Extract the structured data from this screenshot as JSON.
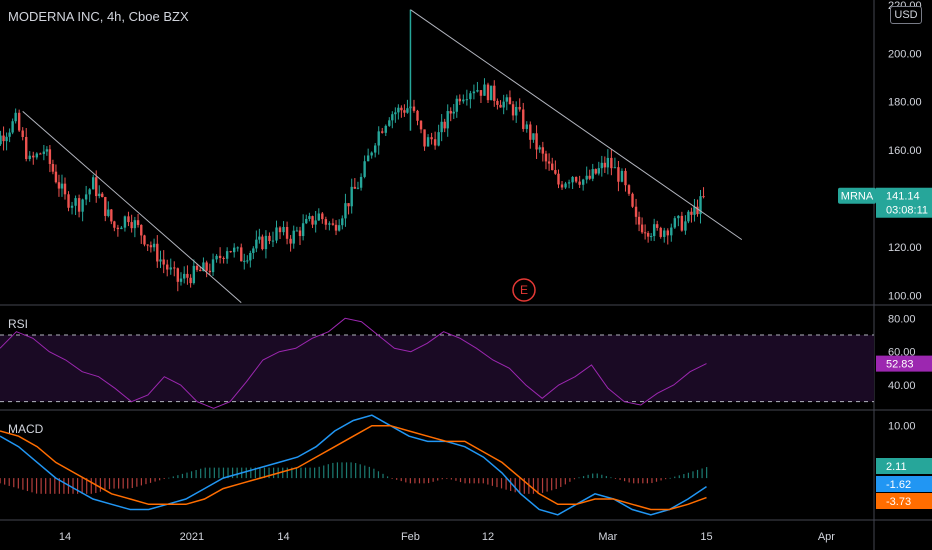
{
  "header": {
    "title": "MODERNA INC, 4h, Cboe BZX",
    "currency_button": "USD"
  },
  "colors": {
    "up": "#26a69a",
    "down": "#ef5350",
    "rsi": "#9c27b0",
    "macd": "#2196f3",
    "signal": "#ff6d00",
    "trendline": "#b2b5be",
    "earnings": "#e53935"
  },
  "chart_data": [
    {
      "type": "candlestick",
      "symbol": "MRNA",
      "title": "MODERNA INC, 4h, Cboe BZX",
      "x_ticks": [
        "14",
        "2021",
        "14",
        "Feb",
        "12",
        "Mar",
        "15",
        "Apr"
      ],
      "y_ticks": [
        "100.00",
        "120.00",
        "140.00",
        "160.00",
        "180.00",
        "200.00",
        "220.00"
      ],
      "ylim": [
        96,
        222
      ],
      "last_price": "141.14",
      "countdown": "03:08:11",
      "earnings_marker": "E",
      "trendlines": [
        {
          "from": [
            "Dec 8",
            176
          ],
          "to": [
            "Jan 8",
            97
          ]
        },
        {
          "from": [
            "Feb 1",
            218
          ],
          "to": [
            "Mar 20",
            123
          ]
        }
      ],
      "close_path": [
        [
          "Dec 2",
          148
        ],
        [
          "Dec 4",
          163
        ],
        [
          "Dec 7",
          172
        ],
        [
          "Dec 9",
          155
        ],
        [
          "Dec 11",
          160
        ],
        [
          "Dec 14",
          140
        ],
        [
          "Dec 16",
          138
        ],
        [
          "Dec 18",
          146
        ],
        [
          "Dec 21",
          128
        ],
        [
          "Dec 23",
          133
        ],
        [
          "Dec 28",
          113
        ],
        [
          "Dec 30",
          106
        ],
        [
          "Jan 4",
          112
        ],
        [
          "Jan 6",
          120
        ],
        [
          "Jan 8",
          116
        ],
        [
          "Jan 11",
          122
        ],
        [
          "Jan 13",
          126
        ],
        [
          "Jan 15",
          124
        ],
        [
          "Jan 19",
          133
        ],
        [
          "Jan 21",
          128
        ],
        [
          "Jan 25",
          148
        ],
        [
          "Jan 27",
          165
        ],
        [
          "Jan 29",
          175
        ],
        [
          "Feb 1",
          178
        ],
        [
          "Feb 3",
          163
        ],
        [
          "Feb 5",
          166
        ],
        [
          "Feb 8",
          183
        ],
        [
          "Feb 10",
          186
        ],
        [
          "Feb 12",
          184
        ],
        [
          "Feb 16",
          176
        ],
        [
          "Feb 18",
          166
        ],
        [
          "Feb 22",
          146
        ],
        [
          "Feb 24",
          150
        ],
        [
          "Feb 26",
          147
        ],
        [
          "Mar 1",
          155
        ],
        [
          "Mar 3",
          148
        ],
        [
          "Mar 5",
          130
        ],
        [
          "Mar 8",
          126
        ],
        [
          "Mar 10",
          129
        ],
        [
          "Mar 12",
          130
        ],
        [
          "Mar 15",
          141.14
        ]
      ]
    },
    {
      "type": "line",
      "label": "RSI",
      "y_ticks": [
        "40.00",
        "60.00",
        "80.00"
      ],
      "ylim": [
        25,
        88
      ],
      "bands": [
        70,
        30
      ],
      "last_value": "52.83",
      "values": [
        62,
        72,
        68,
        60,
        55,
        48,
        45,
        38,
        30,
        34,
        45,
        40,
        30,
        26,
        30,
        42,
        55,
        60,
        62,
        68,
        72,
        80,
        78,
        70,
        62,
        60,
        65,
        72,
        68,
        62,
        55,
        50,
        40,
        32,
        40,
        45,
        52,
        38,
        30,
        28,
        35,
        40,
        48,
        52.83
      ]
    },
    {
      "type": "line",
      "label": "MACD",
      "y_ticks": [
        "10.00"
      ],
      "ylim": [
        -8,
        13
      ],
      "last_values": {
        "histogram": "2.11",
        "macd": "-1.62",
        "signal": "-3.73"
      },
      "series": [
        {
          "name": "MACD",
          "values": [
            8,
            6,
            3,
            0,
            -2,
            -4,
            -5,
            -6,
            -6,
            -5,
            -4,
            -2,
            0,
            1,
            2,
            3,
            4,
            6,
            9,
            11,
            12,
            10,
            8,
            7,
            7,
            6,
            4,
            1,
            -3,
            -6,
            -7,
            -5,
            -3,
            -4,
            -6,
            -7,
            -6,
            -4,
            -1.62
          ]
        },
        {
          "name": "Signal",
          "values": [
            9,
            8,
            6,
            3,
            1,
            -1,
            -3,
            -4,
            -5,
            -5,
            -5,
            -4,
            -2,
            -1,
            0,
            1,
            2,
            4,
            6,
            8,
            10,
            10,
            9,
            8,
            7,
            7,
            5,
            3,
            0,
            -3,
            -5,
            -5,
            -4,
            -4,
            -5,
            -6,
            -6,
            -5,
            -3.73
          ]
        }
      ],
      "histogram": [
        -1,
        -2,
        -3,
        -3,
        -3,
        -3,
        -2,
        -2,
        -1,
        0,
        1,
        2,
        2,
        2,
        2,
        2,
        2,
        2,
        3,
        3,
        2,
        0,
        -1,
        -1,
        0,
        -1,
        -1,
        -2,
        -3,
        -3,
        -2,
        0,
        1,
        0,
        -1,
        -1,
        0,
        1,
        2.11
      ]
    }
  ]
}
